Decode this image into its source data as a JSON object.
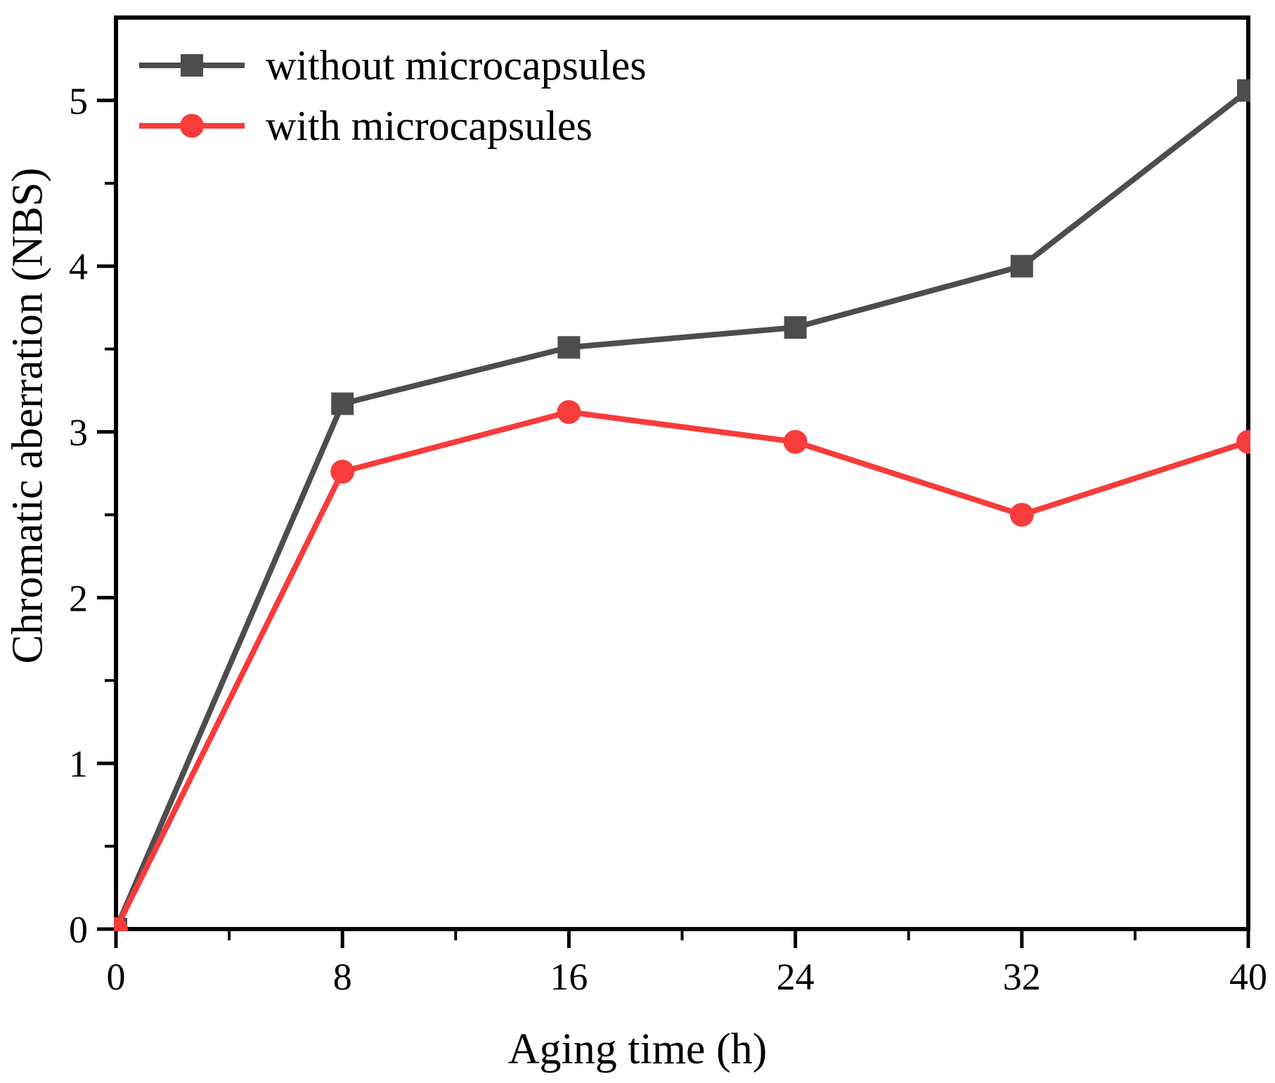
{
  "chart_data": {
    "type": "line",
    "title": "",
    "xlabel": "Aging time (h)",
    "ylabel": "Chromatic aberration (NBS)",
    "x": [
      0,
      8,
      16,
      24,
      32,
      40
    ],
    "series": [
      {
        "name": "without microcapsules",
        "color": "#4d4d4d",
        "marker": "square",
        "values": [
          0,
          3.17,
          3.51,
          3.63,
          4.0,
          5.06
        ]
      },
      {
        "name": "with microcapsules",
        "color": "#f83b3b",
        "marker": "circle",
        "values": [
          0,
          2.76,
          3.12,
          2.94,
          2.5,
          2.94
        ]
      }
    ],
    "xlim": [
      0,
      40
    ],
    "ylim": [
      0,
      5.5
    ],
    "x_major_ticks": [
      0,
      8,
      16,
      24,
      32,
      40
    ],
    "x_minor_step": 4,
    "y_major_ticks": [
      0,
      1,
      2,
      3,
      4,
      5
    ],
    "y_minor_step": 0.5,
    "grid": false,
    "legend_position": "top-left",
    "axis_color": "#000000",
    "background": "#ffffff"
  }
}
